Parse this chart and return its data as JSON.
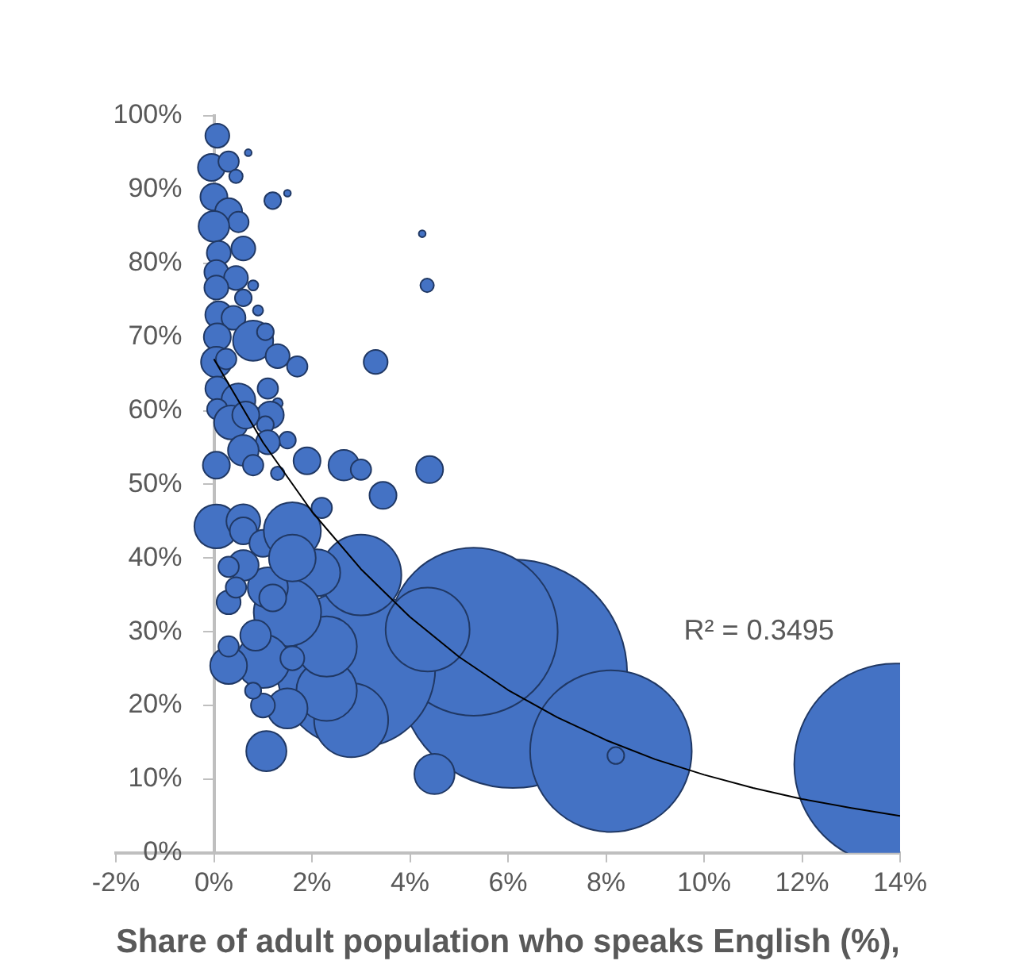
{
  "chart_data": {
    "type": "bubble",
    "xlabel": "Share of adult population who speaks English (%),",
    "xlim": [
      -2,
      14
    ],
    "ylim": [
      0,
      100
    ],
    "xticks": [
      {
        "value": -2,
        "label": "-2%"
      },
      {
        "value": 0,
        "label": "0%"
      },
      {
        "value": 2,
        "label": "2%"
      },
      {
        "value": 4,
        "label": "4%"
      },
      {
        "value": 6,
        "label": "6%"
      },
      {
        "value": 8,
        "label": "8%"
      },
      {
        "value": 10,
        "label": "10%"
      },
      {
        "value": 12,
        "label": "12%"
      },
      {
        "value": 14,
        "label": "14%"
      }
    ],
    "yticks": [
      {
        "value": 0,
        "label": "0%"
      },
      {
        "value": 10,
        "label": "10%"
      },
      {
        "value": 20,
        "label": "20%"
      },
      {
        "value": 30,
        "label": "30%"
      },
      {
        "value": 40,
        "label": "40%"
      },
      {
        "value": 50,
        "label": "50%"
      },
      {
        "value": 60,
        "label": "60%"
      },
      {
        "value": 70,
        "label": "70%"
      },
      {
        "value": 80,
        "label": "80%"
      },
      {
        "value": 90,
        "label": "90%"
      },
      {
        "value": 100,
        "label": "100%"
      }
    ],
    "grid": false,
    "legend": false,
    "annotations": [
      "R² = 0.3495"
    ],
    "series": [
      {
        "type": "bubble",
        "color": "#4472c4",
        "x": [
          6.1,
          13.9,
          5.3,
          8.1,
          2.9,
          3.0,
          4.36,
          2.8,
          8.2,
          4.5,
          4.4,
          4.35,
          4.25,
          3.45,
          3.3,
          2.3,
          2.3,
          2.1,
          1.5,
          1.0,
          1.5,
          1.07,
          1.0,
          0.8,
          0.3,
          0.3,
          0.3,
          1.1,
          0.05,
          0.6,
          0.6,
          1.0,
          0.6,
          0.3,
          1.6,
          1.6,
          1.2,
          2.2,
          0.45,
          0.85,
          1.6,
          0.07,
          -0.05,
          0.3,
          0.45,
          0.7,
          1.2,
          1.5,
          0,
          0.3,
          0.5,
          0,
          0.1,
          0.6,
          0.05,
          0.45,
          0.05,
          0.6,
          0.1,
          0.8,
          0.4,
          0.9,
          0.07,
          0.8,
          1.05,
          1.3,
          1.7,
          0.05,
          0.25,
          0.07,
          0.5,
          1.1,
          1.3,
          0.07,
          1.15,
          0.35,
          0.65,
          1.05,
          1.5,
          1.1,
          0.6,
          1.9,
          2.65,
          3.0,
          0.05,
          0.8,
          1.3
        ],
        "values": [
          24.3,
          12,
          30,
          13.8,
          25,
          37.7,
          30.3,
          18,
          13.2,
          10.7,
          52,
          77,
          84,
          48.5,
          66.6,
          22,
          28,
          38,
          32.6,
          26,
          19.6,
          13.8,
          20,
          22,
          25.4,
          28,
          34,
          36,
          44.3,
          45,
          43.7,
          42,
          39,
          38.8,
          43.7,
          40,
          34.6,
          46.8,
          36,
          29.5,
          26.4,
          97.3,
          93,
          93.8,
          91.8,
          95,
          88.5,
          89.5,
          89,
          87,
          85.6,
          85,
          81.4,
          82,
          78.8,
          78,
          76.7,
          75.3,
          73,
          77,
          72.6,
          73.6,
          70,
          69.5,
          70.7,
          67.4,
          66,
          66.6,
          67,
          63,
          61.4,
          63,
          61,
          60.2,
          59.4,
          58.4,
          59.4,
          58.1,
          56,
          55.7,
          54.6,
          53.2,
          52.6,
          52,
          52.6,
          52.6,
          51.5
        ],
        "sizes": [
          1,
          0.78,
          0.54,
          0.5,
          0.48,
          0.125,
          0.135,
          0.105,
          0.0054,
          0.031,
          0.014,
          0.0035,
          0.0009,
          0.014,
          0.011,
          0.07,
          0.07,
          0.042,
          0.087,
          0.055,
          0.031,
          0.031,
          0.011,
          0.005,
          0.026,
          0.008,
          0.011,
          0.031,
          0.037,
          0.022,
          0.014,
          0.014,
          0.018,
          0.008,
          0.0625,
          0.042,
          0.014,
          0.008,
          0.008,
          0.018,
          0.011,
          0.011,
          0.014,
          0.008,
          0.0035,
          0.0009,
          0.0054,
          0.0009,
          0.014,
          0.014,
          0.008,
          0.018,
          0.011,
          0.011,
          0.011,
          0.011,
          0.011,
          0.0054,
          0.014,
          0.002,
          0.011,
          0.002,
          0.014,
          0.031,
          0.0054,
          0.011,
          0.008,
          0.018,
          0.008,
          0.011,
          0.022,
          0.008,
          0.002,
          0.008,
          0.014,
          0.022,
          0.014,
          0.0054,
          0.0054,
          0.011,
          0.018,
          0.014,
          0.018,
          0.008,
          0.014,
          0.008,
          0.0035
        ]
      },
      {
        "type": "line",
        "color": "#000000",
        "x": [
          0,
          1,
          2,
          3,
          4,
          5,
          6,
          7,
          8,
          9,
          10,
          11,
          12,
          13,
          14
        ],
        "values": [
          67,
          55.7,
          46.3,
          38.5,
          32,
          26.6,
          22.1,
          18.4,
          15.3,
          12.7,
          10.6,
          8.8,
          7.3,
          6.1,
          5.0
        ]
      }
    ]
  }
}
